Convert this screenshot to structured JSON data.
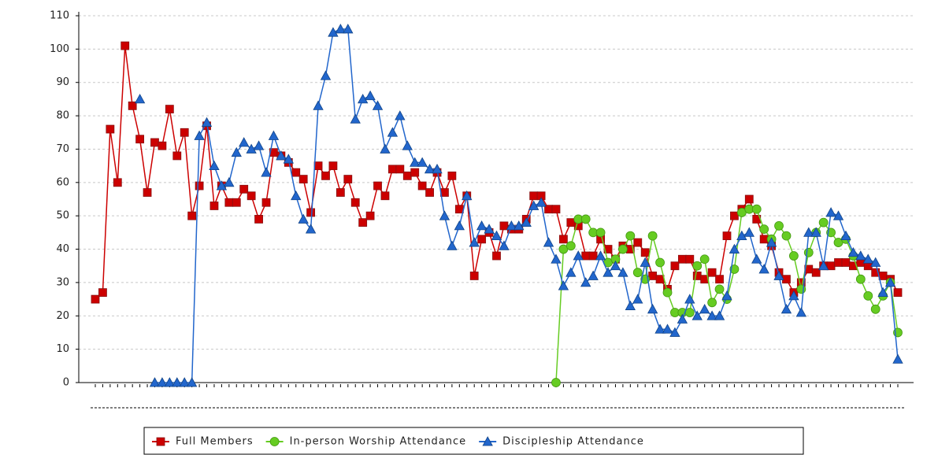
{
  "chart_data": {
    "type": "line",
    "categories": [
      null,
      null,
      null,
      null,
      null,
      null,
      null,
      null,
      null,
      null,
      null,
      null,
      null,
      null,
      null,
      null,
      null,
      null,
      null,
      null,
      null,
      null,
      null,
      null,
      null,
      null,
      null,
      null,
      null,
      null,
      null,
      null,
      null,
      null,
      null,
      null,
      null,
      null,
      null,
      null,
      null,
      null,
      null,
      null,
      null,
      null,
      null,
      null,
      null,
      null,
      null,
      null,
      null,
      null,
      null,
      null,
      null,
      null,
      null,
      null,
      null,
      null,
      null,
      null,
      null,
      null,
      null,
      null,
      null,
      null,
      null,
      null,
      null,
      null,
      null,
      null,
      null,
      null,
      null,
      null,
      null,
      null,
      null,
      null,
      null,
      null,
      null,
      null,
      null,
      null,
      null,
      null,
      null,
      null,
      null,
      null,
      null,
      null,
      null,
      null,
      null,
      null,
      null,
      null,
      null,
      null,
      null,
      null,
      null
    ],
    "series": [
      {
        "name": "Full Members",
        "color": "#cc0000",
        "marker": "square",
        "values": [
          25,
          27,
          76,
          60,
          101,
          83,
          73,
          57,
          72,
          71,
          82,
          68,
          75,
          50,
          59,
          77,
          53,
          59,
          54,
          54,
          58,
          56,
          49,
          54,
          69,
          68,
          66,
          63,
          61,
          51,
          65,
          62,
          65,
          57,
          61,
          54,
          48,
          50,
          59,
          56,
          64,
          64,
          62,
          63,
          59,
          57,
          63,
          57,
          62,
          52,
          56,
          32,
          43,
          45,
          38,
          47,
          46,
          46,
          49,
          56,
          56,
          52,
          52,
          43,
          48,
          47,
          38,
          38,
          43,
          40,
          37,
          41,
          40,
          42,
          39,
          32,
          31,
          28,
          35,
          37,
          37,
          32,
          31,
          33,
          31,
          44,
          50,
          52,
          55,
          49,
          43,
          41,
          33,
          31,
          27,
          30,
          34,
          33,
          35,
          35,
          36,
          36,
          35,
          36,
          35,
          33,
          32,
          31,
          27
        ]
      },
      {
        "name": "In-person Worship Attendance",
        "color": "#66cc22",
        "marker": "circle",
        "values": [
          null,
          null,
          null,
          null,
          null,
          null,
          null,
          null,
          null,
          null,
          null,
          null,
          null,
          null,
          null,
          null,
          null,
          null,
          null,
          null,
          null,
          null,
          null,
          null,
          null,
          null,
          null,
          null,
          null,
          null,
          null,
          null,
          null,
          null,
          null,
          null,
          null,
          null,
          null,
          null,
          null,
          null,
          null,
          null,
          null,
          null,
          null,
          null,
          null,
          null,
          null,
          null,
          null,
          null,
          null,
          null,
          null,
          null,
          null,
          null,
          null,
          null,
          0,
          40,
          41,
          49,
          49,
          45,
          45,
          36,
          37,
          40,
          44,
          33,
          31,
          44,
          36,
          27,
          21,
          21,
          21,
          35,
          37,
          24,
          28,
          25,
          34,
          51,
          52,
          52,
          46,
          43,
          47,
          44,
          38,
          28,
          39,
          45,
          48,
          45,
          42,
          43,
          38,
          31,
          26,
          22,
          26,
          30,
          15
        ]
      },
      {
        "name": "Discipleship Attendance",
        "color": "#2266cc",
        "marker": "triangle",
        "values": [
          null,
          null,
          null,
          null,
          null,
          null,
          85,
          null,
          0,
          0,
          0,
          0,
          0,
          0,
          74,
          78,
          65,
          59,
          60,
          69,
          72,
          70,
          71,
          63,
          74,
          68,
          67,
          56,
          49,
          46,
          83,
          92,
          105,
          106,
          106,
          79,
          85,
          86,
          83,
          70,
          75,
          80,
          71,
          66,
          66,
          64,
          64,
          50,
          41,
          47,
          56,
          42,
          47,
          46,
          44,
          41,
          47,
          47,
          48,
          53,
          54,
          42,
          37,
          29,
          33,
          38,
          30,
          32,
          38,
          33,
          35,
          33,
          23,
          25,
          36,
          22,
          16,
          16,
          15,
          19,
          25,
          20,
          22,
          20,
          20,
          26,
          40,
          44,
          45,
          37,
          34,
          42,
          32,
          22,
          26,
          21,
          45,
          45,
          35,
          51,
          50,
          44,
          39,
          38,
          37,
          36,
          27,
          30,
          7
        ]
      }
    ],
    "ylim": [
      0,
      110
    ],
    "yticks": [
      0,
      10,
      20,
      30,
      40,
      50,
      60,
      70,
      80,
      90,
      100,
      110
    ],
    "grid": true,
    "legend": "bottom"
  }
}
